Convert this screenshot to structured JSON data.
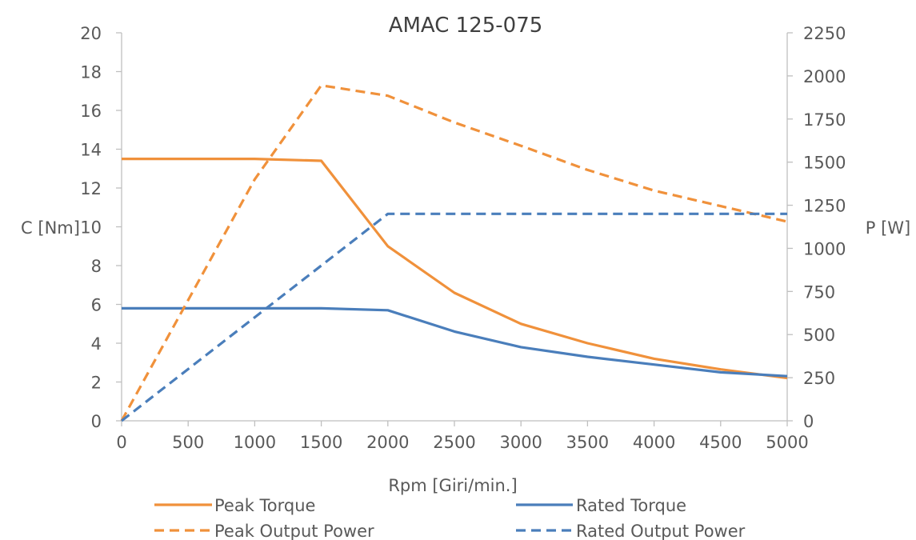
{
  "chart_data": {
    "type": "line",
    "title": "AMAC 125-075",
    "xlabel": "Rpm [Giri/min.]",
    "ylabel_left": "C [Nm]",
    "ylabel_right": "P [W]",
    "xlim": [
      0,
      5000
    ],
    "ylim_left": [
      0,
      20
    ],
    "ylim_right": [
      0,
      2250
    ],
    "x_ticks": [
      "0",
      "500",
      "1000",
      "1500",
      "2000",
      "2500",
      "3000",
      "3500",
      "4000",
      "4500",
      "5000"
    ],
    "y_left_ticks": [
      "0",
      "2",
      "4",
      "6",
      "8",
      "10",
      "12",
      "14",
      "16",
      "18",
      "20"
    ],
    "y_right_ticks": [
      "0",
      "250",
      "500",
      "750",
      "1000",
      "1250",
      "1500",
      "1750",
      "2000",
      "2250"
    ],
    "grid": false,
    "legend_position": "bottom",
    "series": [
      {
        "name": "Peak Torque",
        "axis": "left",
        "color": "#F0913B",
        "dash": "solid",
        "x": [
          0,
          1000,
          1500,
          2000,
          2500,
          3000,
          3500,
          4000,
          4500,
          5000
        ],
        "y": [
          13.5,
          13.5,
          13.4,
          9.0,
          6.6,
          5.0,
          4.0,
          3.2,
          2.65,
          2.2
        ]
      },
      {
        "name": "Rated Torque",
        "axis": "left",
        "color": "#4A7EBB",
        "dash": "solid",
        "x": [
          0,
          500,
          1000,
          1500,
          2000,
          2500,
          3000,
          3500,
          4000,
          4500,
          5000
        ],
        "y": [
          5.8,
          5.8,
          5.8,
          5.8,
          5.7,
          4.6,
          3.8,
          3.3,
          2.9,
          2.5,
          2.3
        ]
      },
      {
        "name": "Peak Output Power",
        "axis": "right",
        "color": "#F0913B",
        "dash": "dashed",
        "x": [
          0,
          1000,
          1500,
          2000,
          2500,
          3000,
          3500,
          4000,
          4500,
          5000
        ],
        "y": [
          0,
          1400,
          1945,
          1885,
          1730,
          1595,
          1455,
          1335,
          1245,
          1155
        ]
      },
      {
        "name": "Rated Output Power",
        "axis": "right",
        "color": "#4A7EBB",
        "dash": "dashed",
        "x": [
          0,
          2000,
          2500,
          3000,
          3500,
          4000,
          4500,
          5000
        ],
        "y": [
          0,
          1200,
          1200,
          1200,
          1200,
          1200,
          1200,
          1200
        ]
      }
    ]
  }
}
